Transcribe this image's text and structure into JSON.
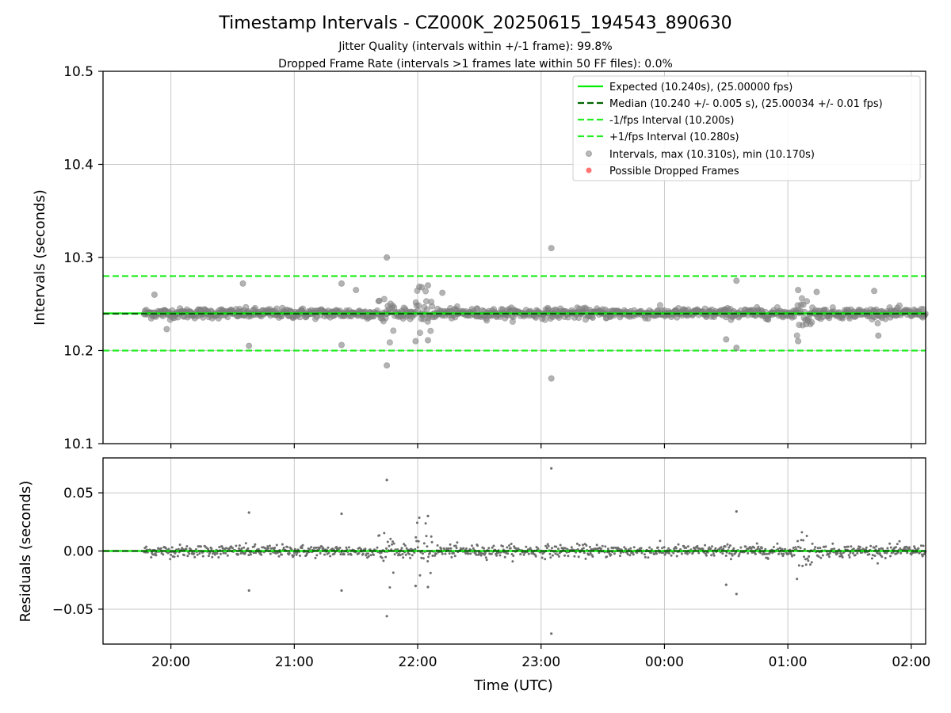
{
  "title": "Timestamp Intervals - CZ000K_20250615_194543_890630",
  "subtitle_1": "Jitter Quality (intervals within +/-1 frame): 99.8%",
  "subtitle_2": "Dropped Frame Rate (intervals >1 frames late within 50 FF files): 0.0%",
  "xlabel": "Time (UTC)",
  "colors": {
    "expected": "#00ee00",
    "median": "#006400",
    "bounds": "#22ee22",
    "points": "#808080",
    "dropped": "#ff4444",
    "grid": "#c8c8c8"
  },
  "chart_data": [
    {
      "type": "scatter",
      "panel": "top",
      "ylabel": "Intervals (seconds)",
      "ylim": [
        10.1,
        10.5
      ],
      "yticks": [
        "10.1",
        "10.2",
        "10.3",
        "10.4",
        "10.5"
      ],
      "xlim": [
        "19:27",
        "02:07"
      ],
      "xticks": [
        "20:00",
        "21:00",
        "22:00",
        "23:00",
        "00:00",
        "01:00",
        "02:00"
      ],
      "grid": true,
      "legend_position": "top-right",
      "reference_lines": [
        {
          "name": "Expected (10.240s), (25.00000 fps)",
          "y": 10.24,
          "style": "solid"
        },
        {
          "name": "Median (10.240 +/- 0.005 s), (25.00034 +/- 0.01 fps)",
          "y": 10.2396,
          "style": "dashed"
        },
        {
          "name": "-1/fps Interval (10.200s)",
          "y": 10.2,
          "style": "dashed"
        },
        {
          "name": "+1/fps Interval (10.280s)",
          "y": 10.28,
          "style": "dashed"
        }
      ],
      "series": [
        {
          "name": "Intervals, max (10.310s), min (10.170s)",
          "marker": "circle"
        },
        {
          "name": "Possible Dropped Frames",
          "marker": "circle",
          "values": []
        }
      ],
      "time_range": [
        "19:47",
        "02:07"
      ],
      "typical_spread": 0.008,
      "outliers": [
        {
          "x": "21:45",
          "y": 10.3
        },
        {
          "x": "21:45",
          "y": 10.184
        },
        {
          "x": "23:05",
          "y": 10.31
        },
        {
          "x": "23:05",
          "y": 10.17
        },
        {
          "x": "20:38",
          "y": 10.205
        },
        {
          "x": "20:35",
          "y": 10.272
        },
        {
          "x": "21:23",
          "y": 10.272
        },
        {
          "x": "21:23",
          "y": 10.206
        },
        {
          "x": "21:30",
          "y": 10.265
        },
        {
          "x": "22:05",
          "y": 10.27
        },
        {
          "x": "22:05",
          "y": 10.211
        },
        {
          "x": "22:02",
          "y": 10.268
        },
        {
          "x": "21:59",
          "y": 10.21
        },
        {
          "x": "22:12",
          "y": 10.262
        },
        {
          "x": "00:30",
          "y": 10.212
        },
        {
          "x": "00:35",
          "y": 10.275
        },
        {
          "x": "00:35",
          "y": 10.203
        },
        {
          "x": "01:05",
          "y": 10.265
        },
        {
          "x": "01:05",
          "y": 10.21
        },
        {
          "x": "01:14",
          "y": 10.263
        },
        {
          "x": "01:42",
          "y": 10.264
        },
        {
          "x": "01:44",
          "y": 10.216
        },
        {
          "x": "19:52",
          "y": 10.26
        },
        {
          "x": "19:58",
          "y": 10.223
        }
      ],
      "clusters": [
        {
          "x": "21:45",
          "spread": 0.03
        },
        {
          "x": "22:03",
          "spread": 0.035
        },
        {
          "x": "01:08",
          "spread": 0.028
        }
      ]
    },
    {
      "type": "scatter",
      "panel": "bottom",
      "ylabel": "Residuals (seconds)",
      "ylim": [
        -0.08,
        0.08
      ],
      "yticks": [
        "−0.05",
        "0.00",
        "0.05"
      ],
      "xticks": [
        "20:00",
        "21:00",
        "22:00",
        "23:00",
        "00:00",
        "01:00",
        "02:00"
      ],
      "grid": true,
      "reference_lines": [
        {
          "y": 0.0
        }
      ],
      "residuals_outliers": [
        {
          "x": "21:45",
          "y": 0.061
        },
        {
          "x": "21:45",
          "y": -0.056
        },
        {
          "x": "23:05",
          "y": 0.071
        },
        {
          "x": "23:05",
          "y": -0.071
        },
        {
          "x": "20:38",
          "y": -0.034
        },
        {
          "x": "20:38",
          "y": 0.033
        },
        {
          "x": "21:23",
          "y": 0.032
        },
        {
          "x": "21:23",
          "y": -0.034
        },
        {
          "x": "00:35",
          "y": 0.034
        },
        {
          "x": "00:35",
          "y": -0.037
        },
        {
          "x": "00:30",
          "y": -0.029
        },
        {
          "x": "22:05",
          "y": 0.03
        },
        {
          "x": "22:05",
          "y": -0.031
        },
        {
          "x": "21:59",
          "y": -0.03
        }
      ]
    }
  ]
}
